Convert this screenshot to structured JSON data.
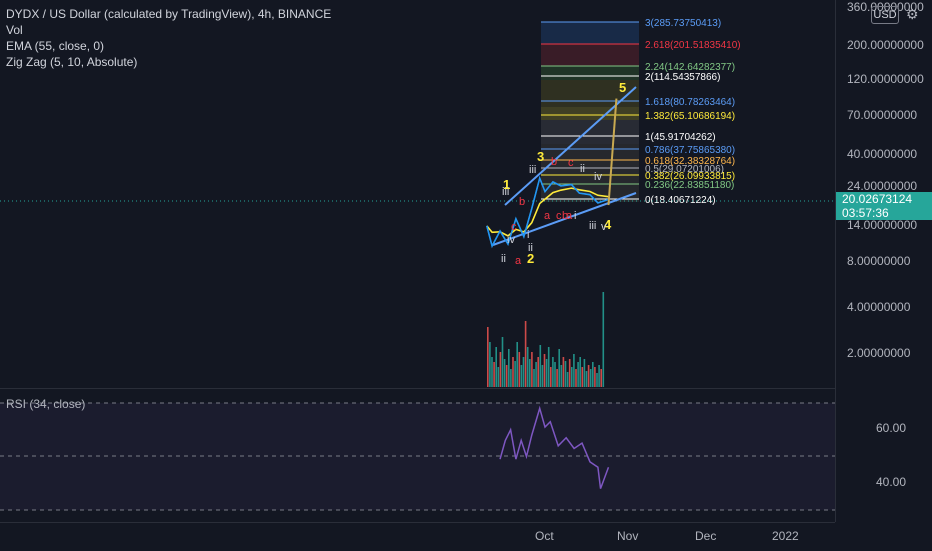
{
  "header": {
    "title": "DYDX / US Dollar (calculated by TradingView), 4h, BINANCE",
    "indicators": [
      "Vol",
      "EMA (55, close, 0)",
      "Zig Zag (5, 10, Absolute)"
    ]
  },
  "price_axis": {
    "currency": "USD",
    "ticks": [
      "360.00000000",
      "200.00000000",
      "120.00000000",
      "70.00000000",
      "40.00000000",
      "24.00000000",
      "14.00000000",
      "8.00000000",
      "4.00000000",
      "2.00000000"
    ],
    "current_price": "20.02673124",
    "countdown": "03:57:36"
  },
  "rsi": {
    "label": "RSI (34, close)",
    "ticks": [
      "60.00",
      "40.00"
    ]
  },
  "time_axis": {
    "ticks": [
      "Oct",
      "Nov",
      "Dec",
      "2022"
    ]
  },
  "fib_levels": [
    {
      "label": "3(285.73750413)",
      "color": "#5b9cf6"
    },
    {
      "label": "2.618(201.51835410)",
      "color": "#f23645"
    },
    {
      "label": "2.24(142.64282377)",
      "color": "#81c784"
    },
    {
      "label": "2(114.54357866)",
      "color": "#ffffff"
    },
    {
      "label": "1.618(80.78263464)",
      "color": "#5b9cf6"
    },
    {
      "label": "1.382(65.10686194)",
      "color": "#ffeb3b"
    },
    {
      "label": "1(45.91704262)",
      "color": "#ffffff"
    },
    {
      "label": "0.786(37.75865380)",
      "color": "#5b9cf6"
    },
    {
      "label": "0.618(32.38328764)",
      "color": "#ffb74d"
    },
    {
      "label": "0.5(29.07201006)",
      "color": "#b2b5be"
    },
    {
      "label": "0.382(26.09933815)",
      "color": "#ffeb3b"
    },
    {
      "label": "0.236(22.83851180)",
      "color": "#81c784"
    },
    {
      "label": "0(18.40671224)",
      "color": "#ffffff"
    }
  ],
  "wave_labels": {
    "major": [
      "1",
      "2",
      "3",
      "4",
      "5"
    ],
    "minor_white": [
      "iii",
      "ii",
      "iv",
      "i",
      "ii",
      "iii",
      "iv",
      "ii",
      "i",
      "iii",
      "v"
    ],
    "minor_red": [
      "a",
      "b",
      "c",
      "a",
      "b",
      "c",
      "b",
      "a",
      "c"
    ]
  },
  "chart_data": {
    "type": "line",
    "price_series": [
      {
        "date": "2021-09-09",
        "price": 13.5
      },
      {
        "date": "2021-09-11",
        "price": 10.0
      },
      {
        "date": "2021-09-14",
        "price": 12.5
      },
      {
        "date": "2021-09-17",
        "price": 10.3
      },
      {
        "date": "2021-09-20",
        "price": 15.0
      },
      {
        "date": "2021-09-23",
        "price": 11.5
      },
      {
        "date": "2021-09-26",
        "price": 17.5
      },
      {
        "date": "2021-09-29",
        "price": 27.5
      },
      {
        "date": "2021-10-01",
        "price": 22.5
      },
      {
        "date": "2021-10-04",
        "price": 26.0
      },
      {
        "date": "2021-10-07",
        "price": 24.5
      },
      {
        "date": "2021-10-11",
        "price": 25.0
      },
      {
        "date": "2021-10-14",
        "price": 22.0
      },
      {
        "date": "2021-10-18",
        "price": 21.5
      },
      {
        "date": "2021-10-21",
        "price": 19.0
      },
      {
        "date": "2021-10-25",
        "price": 20.03
      }
    ],
    "projection": [
      {
        "date": "2021-10-25",
        "price": 18.4
      },
      {
        "date": "2021-10-28",
        "price": 90.0
      }
    ],
    "rsi_series": [
      {
        "date": "2021-09-14",
        "value": 49
      },
      {
        "date": "2021-09-16",
        "value": 56
      },
      {
        "date": "2021-09-18",
        "value": 60
      },
      {
        "date": "2021-09-20",
        "value": 49
      },
      {
        "date": "2021-09-22",
        "value": 56
      },
      {
        "date": "2021-09-24",
        "value": 50
      },
      {
        "date": "2021-09-26",
        "value": 58
      },
      {
        "date": "2021-09-29",
        "value": 68
      },
      {
        "date": "2021-10-01",
        "value": 61
      },
      {
        "date": "2021-10-03",
        "value": 63
      },
      {
        "date": "2021-10-06",
        "value": 54
      },
      {
        "date": "2021-10-09",
        "value": 57
      },
      {
        "date": "2021-10-12",
        "value": 53
      },
      {
        "date": "2021-10-15",
        "value": 55
      },
      {
        "date": "2021-10-18",
        "value": 48
      },
      {
        "date": "2021-10-21",
        "value": 46
      },
      {
        "date": "2021-10-22",
        "value": 38
      },
      {
        "date": "2021-10-25",
        "value": 46
      }
    ],
    "rsi_bands": [
      70,
      50,
      30
    ],
    "y_scale": "log",
    "legend": "none"
  }
}
